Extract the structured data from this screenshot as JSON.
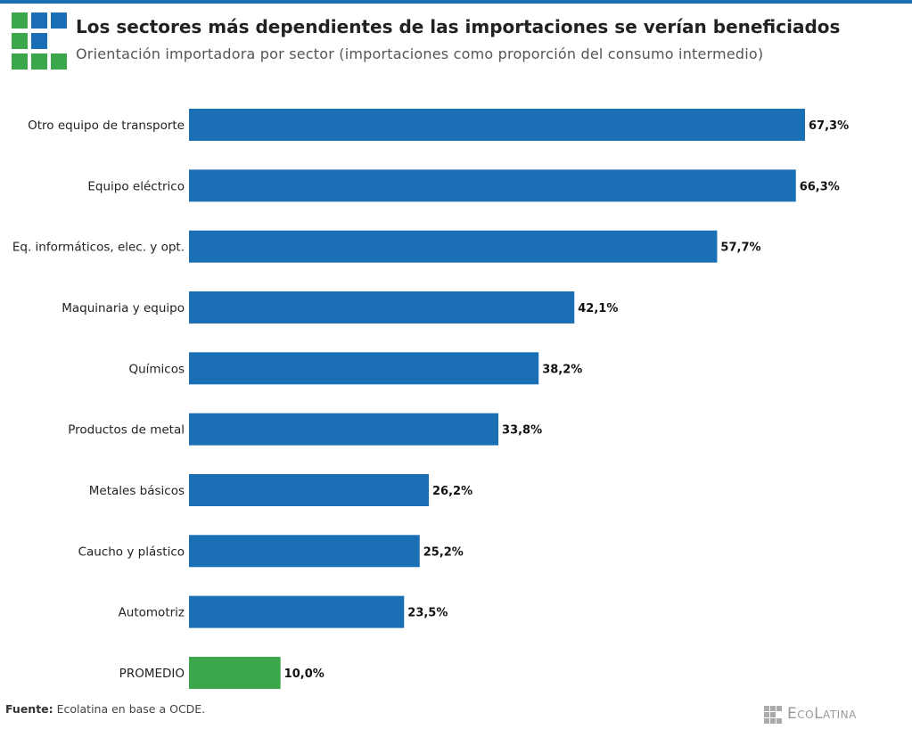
{
  "header": {
    "title": "Los sectores más dependientes de las importaciones se verían beneficiados",
    "subtitle": "Orientación importadora por sector (importaciones como proporción del consumo intermedio)"
  },
  "colors": {
    "bar": "#1a6fb5",
    "average_bar": "#3aa84a",
    "logo_green": "#3aa84a",
    "logo_blue": "#1a6fb5"
  },
  "chart_data": {
    "type": "bar",
    "orientation": "horizontal",
    "categories": [
      "Otro equipo de transporte",
      "Equipo eléctrico",
      "Eq. informáticos, elec. y opt.",
      "Maquinaria y equipo",
      "Químicos",
      "Productos de metal",
      "Metales básicos",
      "Caucho y plástico",
      "Automotriz",
      "PROMEDIO"
    ],
    "values": [
      67.3,
      66.3,
      57.7,
      42.1,
      38.2,
      33.8,
      26.2,
      25.2,
      23.5,
      10.0
    ],
    "data_labels": [
      "67,3%",
      "66,3%",
      "57,7%",
      "42,1%",
      "38,2%",
      "33,8%",
      "26,2%",
      "25,2%",
      "23,5%",
      "10,0%"
    ],
    "highlight": "PROMEDIO",
    "xlim": [
      0,
      70
    ],
    "grid": false,
    "axes_visible": false
  },
  "footer": {
    "source_label": "Fuente:",
    "source_text": " Ecolatina en base a OCDE.",
    "brand": "EcoLatina"
  }
}
